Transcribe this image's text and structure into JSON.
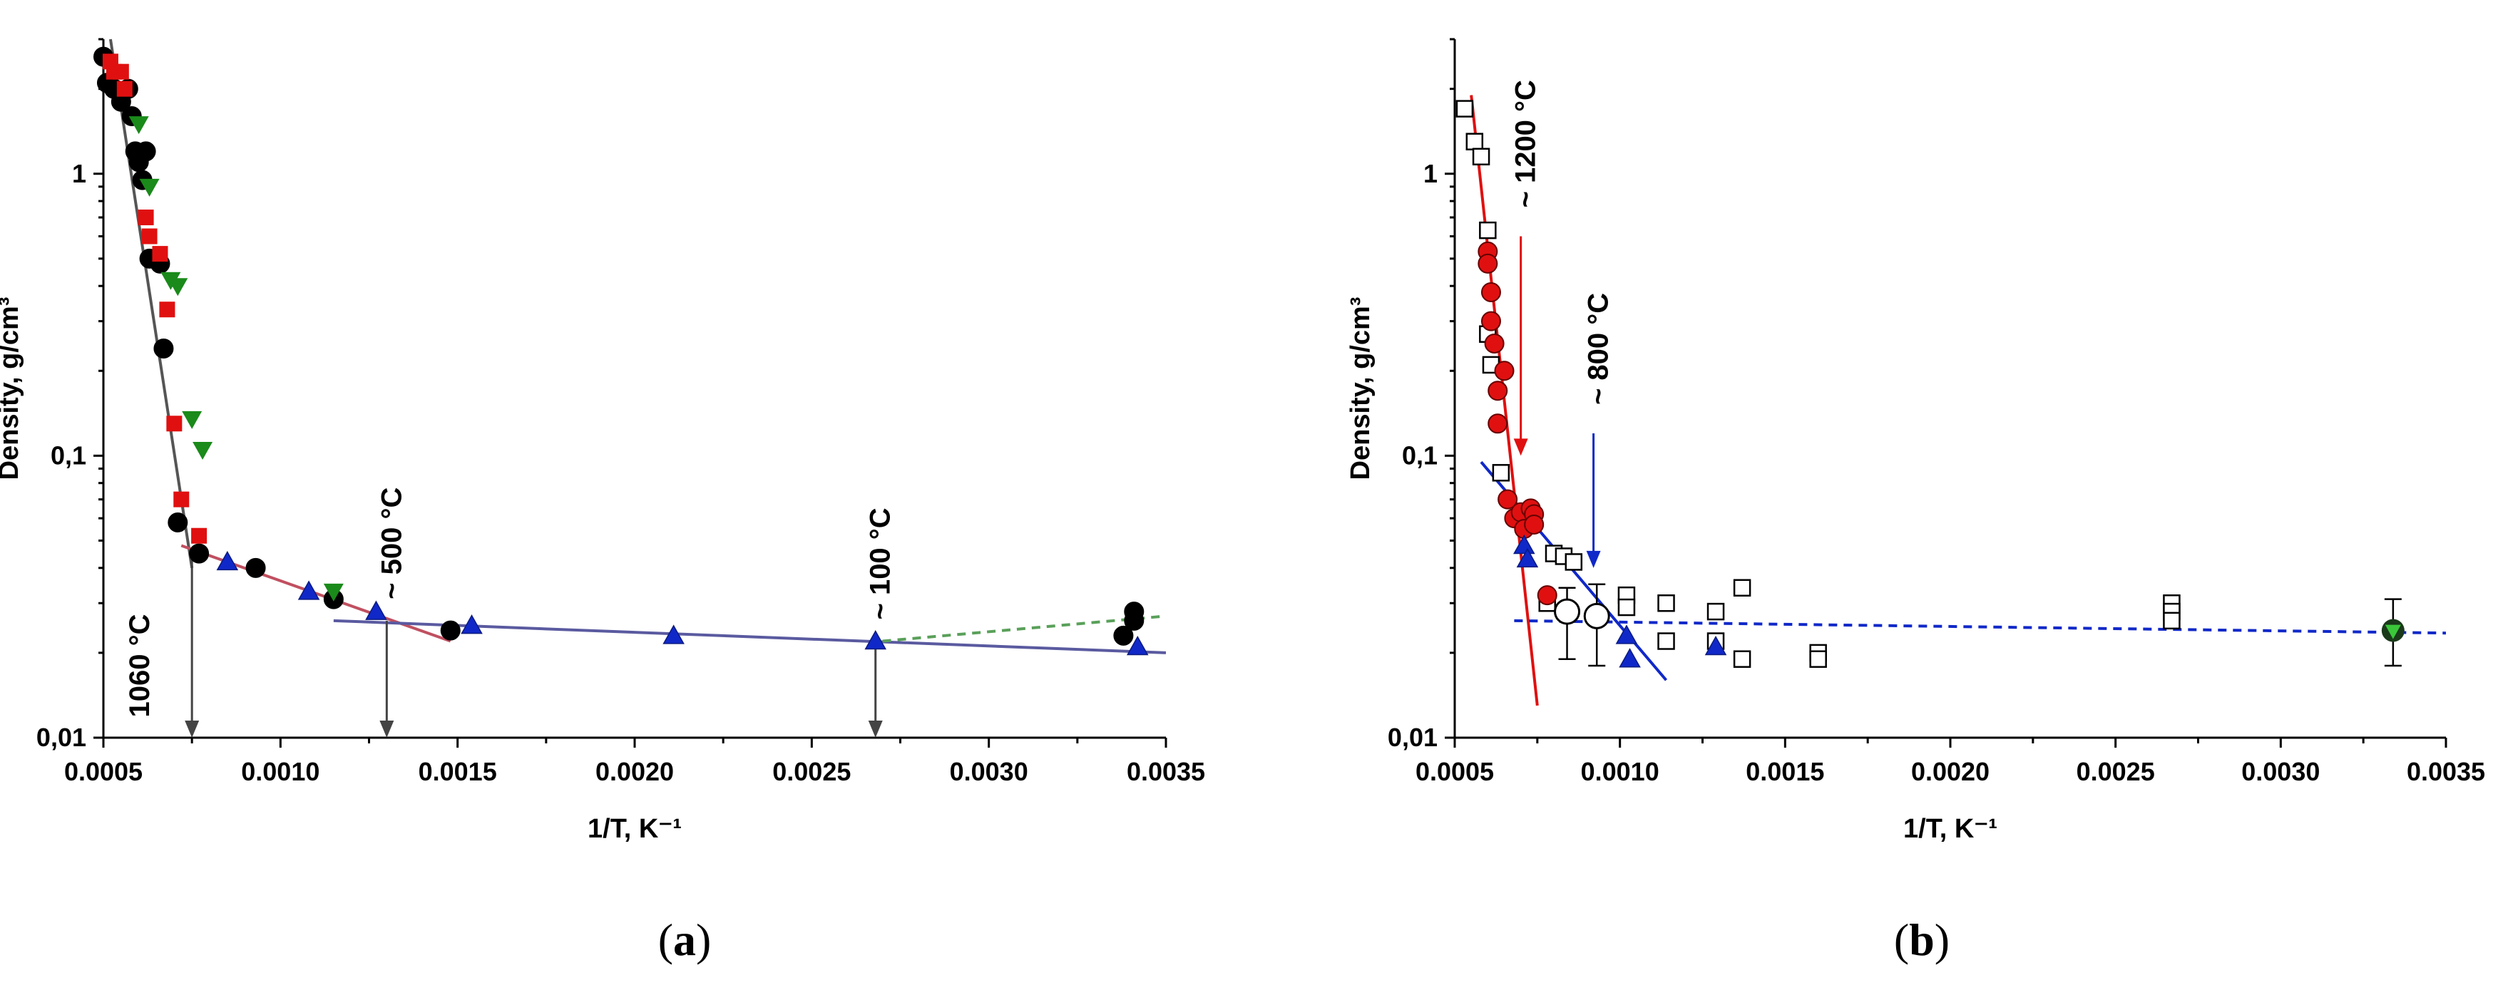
{
  "chart_data": [
    {
      "panel": "a",
      "type": "scatter",
      "caption_open": "(",
      "caption_letter": "a",
      "caption_close": ")",
      "xlabel": "1/T, K⁻¹",
      "ylabel": "Density, g/cm³",
      "xlim": [
        0.0005,
        0.0035
      ],
      "ylim": [
        0.01,
        3.0
      ],
      "yscale": "log",
      "xticks": [
        0.0005,
        0.001,
        0.0015,
        0.002,
        0.0025,
        0.003,
        0.0035
      ],
      "xtick_labels": [
        "0.0005",
        "0.0010",
        "0.0015",
        "0.0020",
        "0.0025",
        "0.0030",
        "0.0035"
      ],
      "yticks": [
        0.01,
        0.1,
        1
      ],
      "ytick_labels": [
        "0,01",
        "0,1",
        "1"
      ],
      "series": [
        {
          "name": "black circles",
          "marker": "circle",
          "color": "#000000",
          "x": [
            0.0005,
            0.00051,
            0.00053,
            0.00055,
            0.00057,
            0.00058,
            0.00059,
            0.0006,
            0.00061,
            0.00062,
            0.00063,
            0.00066,
            0.00067,
            0.00071,
            0.00077,
            0.00093,
            0.00115,
            0.00148,
            0.00338,
            0.00341,
            0.00341
          ],
          "y": [
            2.6,
            2.1,
            2.0,
            1.8,
            2.0,
            1.6,
            1.2,
            1.1,
            0.95,
            1.2,
            0.5,
            0.48,
            0.24,
            0.058,
            0.045,
            0.04,
            0.031,
            0.024,
            0.023,
            0.026,
            0.028
          ]
        },
        {
          "name": "red squares",
          "marker": "square",
          "color": "#e01010",
          "x": [
            0.00052,
            0.00053,
            0.00055,
            0.00056,
            0.00062,
            0.00063,
            0.00066,
            0.00068,
            0.0007,
            0.00072,
            0.00077
          ],
          "y": [
            2.5,
            2.3,
            2.3,
            2.0,
            0.7,
            0.6,
            0.52,
            0.33,
            0.13,
            0.07,
            0.052
          ]
        },
        {
          "name": "green down triangles",
          "marker": "tri-down",
          "color": "#1a8a1a",
          "x": [
            0.0006,
            0.00063,
            0.00069,
            0.00071,
            0.00075,
            0.00078,
            0.00115
          ],
          "y": [
            1.5,
            0.9,
            0.42,
            0.4,
            0.135,
            0.105,
            0.033
          ]
        },
        {
          "name": "blue up triangles",
          "marker": "tri-up",
          "color": "#1028c8",
          "x": [
            0.00085,
            0.00108,
            0.00127,
            0.00154,
            0.00211,
            0.00268,
            0.00342
          ],
          "y": [
            0.042,
            0.033,
            0.028,
            0.025,
            0.023,
            0.022,
            0.021
          ]
        }
      ],
      "fit_lines": [
        {
          "color": "#555555",
          "dash": "solid",
          "x": [
            0.00052,
            0.00075
          ],
          "y": [
            3.0,
            0.04
          ]
        },
        {
          "color": "#c05060",
          "dash": "solid",
          "x": [
            0.00072,
            0.00148
          ],
          "y": [
            0.048,
            0.022
          ]
        },
        {
          "color": "#5a5aa0",
          "dash": "solid",
          "x": [
            0.00115,
            0.0035
          ],
          "y": [
            0.026,
            0.02
          ]
        },
        {
          "color": "#5aa05a",
          "dash": "dashed",
          "x": [
            0.0027,
            0.0035
          ],
          "y": [
            0.022,
            0.027
          ]
        }
      ],
      "annotations": [
        {
          "text": "1060 °C",
          "x": 0.00075,
          "y_from": 0.045,
          "y_to": 0.01
        },
        {
          "text": "~ 500 °C",
          "x": 0.0013,
          "y_from": 0.026,
          "y_to": 0.01
        },
        {
          "text": "~ 100 °C",
          "x": 0.00268,
          "y_from": 0.022,
          "y_to": 0.01
        }
      ]
    },
    {
      "panel": "b",
      "type": "scatter",
      "caption_open": "(",
      "caption_letter": "b",
      "caption_close": ")",
      "xlabel": "1/T, K⁻¹",
      "ylabel": "Density, g/cm³",
      "xlim": [
        0.0005,
        0.0035
      ],
      "ylim": [
        0.01,
        3.0
      ],
      "yscale": "log",
      "xticks": [
        0.0005,
        0.001,
        0.0015,
        0.002,
        0.0025,
        0.003,
        0.0035
      ],
      "xtick_labels": [
        "0.0005",
        "0.0010",
        "0.0015",
        "0.0020",
        "0.0025",
        "0.0030",
        "0.0035"
      ],
      "yticks": [
        0.01,
        0.1,
        1
      ],
      "ytick_labels": [
        "0,01",
        "0,1",
        "1"
      ],
      "series": [
        {
          "name": "open squares",
          "marker": "open-square",
          "color": "#000000",
          "x": [
            0.00053,
            0.00056,
            0.00058,
            0.0006,
            0.0006,
            0.00061,
            0.00064,
            0.00078,
            0.0008,
            0.00083,
            0.00086,
            0.00102,
            0.00102,
            0.00114,
            0.00114,
            0.00129,
            0.00129,
            0.00137,
            0.00137,
            0.0016,
            0.0016,
            0.00267,
            0.00267,
            0.00267
          ],
          "y": [
            1.7,
            1.3,
            1.15,
            0.63,
            0.27,
            0.21,
            0.087,
            0.03,
            0.045,
            0.044,
            0.042,
            0.032,
            0.029,
            0.03,
            0.022,
            0.028,
            0.022,
            0.034,
            0.019,
            0.02,
            0.019,
            0.03,
            0.028,
            0.026
          ]
        },
        {
          "name": "red filled circles",
          "marker": "circle",
          "color": "#e01010",
          "x": [
            0.0006,
            0.0006,
            0.00061,
            0.00061,
            0.00062,
            0.00063,
            0.00063,
            0.00065,
            0.00066,
            0.00068,
            0.0007,
            0.00071,
            0.00073,
            0.00074,
            0.00074,
            0.00078
          ],
          "y": [
            0.53,
            0.48,
            0.38,
            0.3,
            0.25,
            0.17,
            0.13,
            0.2,
            0.07,
            0.06,
            0.063,
            0.055,
            0.065,
            0.062,
            0.057,
            0.032
          ]
        },
        {
          "name": "open circles",
          "marker": "open-circle",
          "color": "#000000",
          "x": [
            0.00084,
            0.00093
          ],
          "y": [
            0.028,
            0.027
          ],
          "err_low": [
            0.019,
            0.018
          ],
          "err_high": [
            0.034,
            0.035
          ]
        },
        {
          "name": "blue triangles",
          "marker": "tri-up",
          "color": "#1028c8",
          "x": [
            0.00071,
            0.00072,
            0.00102,
            0.00103,
            0.00129
          ],
          "y": [
            0.048,
            0.043,
            0.023,
            0.019,
            0.021
          ]
        },
        {
          "name": "green triangle",
          "marker": "tri-down-green",
          "color": "#1a8a1a",
          "x": [
            0.00334
          ],
          "y": [
            0.024
          ],
          "err_low": [
            0.018
          ],
          "err_high": [
            0.031
          ]
        }
      ],
      "fit_lines": [
        {
          "color": "#e01010",
          "dash": "solid",
          "x": [
            0.00055,
            0.00075
          ],
          "y": [
            1.9,
            0.013
          ]
        },
        {
          "color": "#1028c8",
          "dash": "solid",
          "x": [
            0.00058,
            0.00114
          ],
          "y": [
            0.095,
            0.016
          ]
        },
        {
          "color": "#1028c8",
          "dash": "dashed",
          "x": [
            0.00068,
            0.0035
          ],
          "y": [
            0.026,
            0.0235
          ]
        }
      ],
      "annotations": [
        {
          "text": "~ 1200 °C",
          "x": 0.0007,
          "y_from": 0.6,
          "y_to": 0.1,
          "color": "#e01010"
        },
        {
          "text": "~ 800 °C",
          "x": 0.00092,
          "y_from": 0.12,
          "y_to": 0.04,
          "color": "#1028c8"
        }
      ]
    }
  ]
}
